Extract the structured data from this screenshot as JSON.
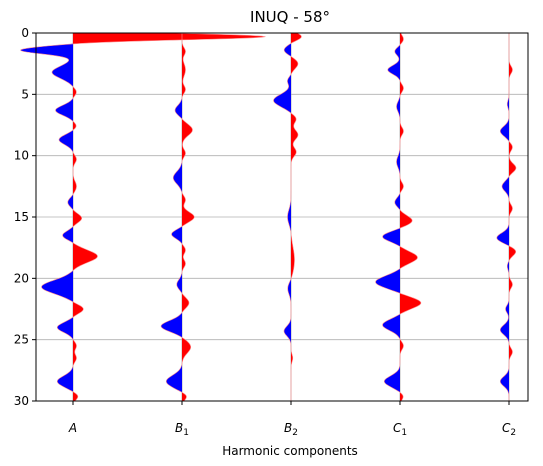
{
  "chart_data": {
    "type": "area",
    "title": "INUQ - 58°",
    "xlabel": "Harmonic components",
    "ylabel": "",
    "ylim": [
      30,
      0
    ],
    "y_ticks": [
      0,
      5,
      10,
      15,
      20,
      25,
      30
    ],
    "grid": "horizontal",
    "colors": {
      "positive": "#ff0000",
      "negative": "#0000ff",
      "baseline": "#aaaaaa"
    },
    "categories": [
      {
        "base": "A",
        "sub": ""
      },
      {
        "base": "B",
        "sub": "1"
      },
      {
        "base": "B",
        "sub": "2"
      },
      {
        "base": "C",
        "sub": "1"
      },
      {
        "base": "C",
        "sub": "2"
      }
    ],
    "series": [
      {
        "category": "A",
        "peaks": [
          [
            0.3,
            0.55,
            0.25
          ],
          [
            1.4,
            -0.15,
            0.3
          ],
          [
            3.2,
            -0.06,
            0.5
          ],
          [
            4.8,
            0.01,
            0.3
          ],
          [
            6.3,
            -0.05,
            0.4
          ],
          [
            7.6,
            0.01,
            0.3
          ],
          [
            8.7,
            -0.04,
            0.4
          ],
          [
            10.3,
            0.01,
            0.3
          ],
          [
            12.5,
            0.01,
            0.4
          ],
          [
            13.8,
            -0.015,
            0.35
          ],
          [
            15.1,
            0.025,
            0.35
          ],
          [
            16.5,
            -0.03,
            0.35
          ],
          [
            18.2,
            0.07,
            0.5
          ],
          [
            20.7,
            -0.09,
            0.55
          ],
          [
            22.5,
            0.03,
            0.35
          ],
          [
            24.0,
            -0.045,
            0.4
          ],
          [
            25.5,
            0.01,
            0.3
          ],
          [
            26.5,
            0.01,
            0.3
          ],
          [
            28.4,
            -0.045,
            0.45
          ],
          [
            29.6,
            0.015,
            0.3
          ]
        ]
      },
      {
        "category": "B1",
        "peaks": [
          [
            1.5,
            0.01,
            0.3
          ],
          [
            3.0,
            0.01,
            0.5
          ],
          [
            4.6,
            0.01,
            0.3
          ],
          [
            6.3,
            -0.02,
            0.4
          ],
          [
            7.9,
            0.03,
            0.45
          ],
          [
            9.8,
            0.01,
            0.3
          ],
          [
            11.8,
            -0.025,
            0.5
          ],
          [
            13.6,
            0.01,
            0.3
          ],
          [
            15.0,
            0.035,
            0.4
          ],
          [
            16.4,
            -0.03,
            0.35
          ],
          [
            17.7,
            0.01,
            0.3
          ],
          [
            18.8,
            0.01,
            0.3
          ],
          [
            20.5,
            -0.015,
            0.4
          ],
          [
            22.0,
            0.02,
            0.4
          ],
          [
            23.9,
            -0.06,
            0.45
          ],
          [
            25.6,
            0.025,
            0.5
          ],
          [
            28.4,
            -0.045,
            0.5
          ],
          [
            29.6,
            0.015,
            0.3
          ]
        ]
      },
      {
        "category": "B2",
        "peaks": [
          [
            0.3,
            0.03,
            0.3
          ],
          [
            1.4,
            -0.02,
            0.35
          ],
          [
            2.5,
            0.02,
            0.4
          ],
          [
            3.9,
            -0.01,
            0.3
          ],
          [
            5.5,
            -0.05,
            0.5
          ],
          [
            7.0,
            0.015,
            0.35
          ],
          [
            8.3,
            0.02,
            0.4
          ],
          [
            9.7,
            0.015,
            0.35
          ],
          [
            15.0,
            -0.01,
            0.6
          ],
          [
            18.5,
            0.01,
            1.0
          ],
          [
            20.8,
            -0.01,
            0.5
          ],
          [
            24.3,
            -0.02,
            0.4
          ],
          [
            26.5,
            0.005,
            0.3
          ]
        ]
      },
      {
        "category": "C1",
        "peaks": [
          [
            0.5,
            0.01,
            0.3
          ],
          [
            1.5,
            -0.015,
            0.3
          ],
          [
            3.0,
            -0.035,
            0.35
          ],
          [
            4.5,
            0.01,
            0.3
          ],
          [
            6.0,
            -0.01,
            0.4
          ],
          [
            8.0,
            0.01,
            0.3
          ],
          [
            10.5,
            -0.01,
            0.45
          ],
          [
            12.5,
            0.01,
            0.3
          ],
          [
            13.8,
            -0.015,
            0.35
          ],
          [
            15.3,
            0.035,
            0.4
          ],
          [
            16.6,
            -0.05,
            0.4
          ],
          [
            18.3,
            0.05,
            0.45
          ],
          [
            20.3,
            -0.07,
            0.5
          ],
          [
            22.0,
            0.06,
            0.45
          ],
          [
            23.8,
            -0.05,
            0.45
          ],
          [
            25.5,
            0.01,
            0.3
          ],
          [
            28.4,
            -0.045,
            0.45
          ],
          [
            29.6,
            0.01,
            0.3
          ]
        ]
      },
      {
        "category": "C2",
        "peaks": [
          [
            3.0,
            0.01,
            0.3
          ],
          [
            5.8,
            -0.005,
            0.3
          ],
          [
            8.0,
            -0.025,
            0.4
          ],
          [
            9.3,
            0.01,
            0.3
          ],
          [
            11.0,
            0.02,
            0.35
          ],
          [
            12.5,
            -0.02,
            0.4
          ],
          [
            14.3,
            0.01,
            0.3
          ],
          [
            16.7,
            -0.035,
            0.4
          ],
          [
            17.8,
            0.02,
            0.35
          ],
          [
            19.0,
            -0.005,
            0.3
          ],
          [
            20.5,
            0.01,
            0.3
          ],
          [
            22.5,
            -0.01,
            0.3
          ],
          [
            24.2,
            -0.025,
            0.4
          ],
          [
            26.0,
            0.01,
            0.3
          ],
          [
            28.4,
            -0.025,
            0.4
          ]
        ]
      }
    ]
  }
}
